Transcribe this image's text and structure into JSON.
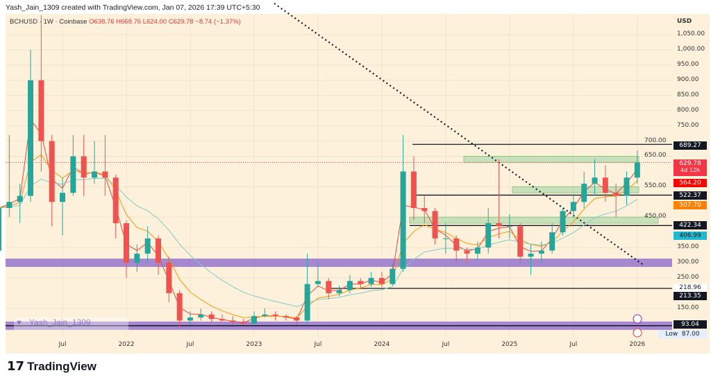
{
  "header": {
    "credit": "Yash_Jain_1309 created with TradingView.com, Jan 07, 2026 17:39 UTC+5:30",
    "symbol": "BCHUSD",
    "interval": "1W",
    "exchange": "Coinbase",
    "open": "O638.76",
    "high": "H668.76",
    "low": "L624.00",
    "close": "C629.78",
    "change": "−8.74 (−1.37%)"
  },
  "currency": "USD",
  "watermark": "Yash_Jain_1309",
  "brand": "TradingView",
  "colors": {
    "up": "#26a69a",
    "down": "#ef5350",
    "band": "#9575cd",
    "zone": "#a5d6a7",
    "ema1": "#f44336",
    "ema2": "#ff9800",
    "ema3": "#80cbc4"
  },
  "badges": {
    "r1": "689.27",
    "last": "629.78",
    "countdown": "4d 12h",
    "ema1": "564.20",
    "r2": "522.37",
    "ema2": "507.70",
    "r3": "422.34",
    "ema3": "406.99",
    "s1": "218.96",
    "s2": "213.35",
    "s3": "93.04",
    "low_label": "Low",
    "low": "87.00"
  },
  "chart_data": {
    "type": "candlestick",
    "y_ticks": [
      "1,050.00",
      "1,000.00",
      "950.00",
      "900.00",
      "850.00",
      "800.00",
      "750.00",
      "700.00",
      "650.00",
      "550.00",
      "450.00",
      "350.00",
      "300.00",
      "250.00",
      "150.00"
    ],
    "y_tick_values": [
      1050,
      1000,
      950,
      900,
      850,
      800,
      750,
      700,
      650,
      550,
      450,
      350,
      300,
      250,
      150
    ],
    "x_ticks": [
      "Jul",
      "2022",
      "Jul",
      "2023",
      "Jul",
      "2024",
      "Jul",
      "2025",
      "Jul",
      "2026"
    ],
    "x_tick_months": [
      6,
      12,
      18,
      24,
      30,
      36,
      42,
      48,
      54,
      60
    ],
    "ohlc_monthly_approx": [
      [
        340,
        520,
        330,
        480
      ],
      [
        480,
        720,
        450,
        500
      ],
      [
        500,
        560,
        430,
        520
      ],
      [
        520,
        1000,
        500,
        900
      ],
      [
        900,
        1600,
        600,
        700
      ],
      [
        700,
        720,
        420,
        500
      ],
      [
        500,
        580,
        390,
        530
      ],
      [
        530,
        720,
        520,
        650
      ],
      [
        650,
        720,
        520,
        580
      ],
      [
        580,
        700,
        560,
        600
      ],
      [
        600,
        720,
        520,
        580
      ],
      [
        580,
        590,
        380,
        430
      ],
      [
        430,
        440,
        250,
        300
      ],
      [
        300,
        360,
        270,
        330
      ],
      [
        330,
        420,
        300,
        380
      ],
      [
        380,
        390,
        260,
        300
      ],
      [
        300,
        320,
        170,
        200
      ],
      [
        200,
        210,
        90,
        110
      ],
      [
        110,
        140,
        95,
        120
      ],
      [
        120,
        150,
        110,
        130
      ],
      [
        130,
        140,
        105,
        115
      ],
      [
        115,
        130,
        105,
        110
      ],
      [
        110,
        125,
        95,
        105
      ],
      [
        105,
        115,
        95,
        100
      ],
      [
        100,
        140,
        98,
        125
      ],
      [
        125,
        150,
        120,
        130
      ],
      [
        130,
        140,
        110,
        125
      ],
      [
        125,
        130,
        110,
        120
      ],
      [
        120,
        125,
        95,
        110
      ],
      [
        110,
        330,
        100,
        230
      ],
      [
        230,
        300,
        220,
        240
      ],
      [
        240,
        250,
        180,
        200
      ],
      [
        200,
        225,
        190,
        210
      ],
      [
        210,
        260,
        200,
        240
      ],
      [
        240,
        250,
        215,
        230
      ],
      [
        230,
        270,
        220,
        250
      ],
      [
        250,
        270,
        220,
        230
      ],
      [
        230,
        300,
        225,
        280
      ],
      [
        280,
        720,
        270,
        600
      ],
      [
        600,
        650,
        440,
        480
      ],
      [
        480,
        520,
        430,
        470
      ],
      [
        470,
        480,
        360,
        380
      ],
      [
        380,
        430,
        330,
        380
      ],
      [
        380,
        390,
        300,
        340
      ],
      [
        340,
        350,
        300,
        330
      ],
      [
        330,
        370,
        310,
        350
      ],
      [
        350,
        480,
        330,
        430
      ],
      [
        430,
        640,
        380,
        420
      ],
      [
        420,
        460,
        380,
        420
      ],
      [
        420,
        430,
        300,
        320
      ],
      [
        320,
        360,
        260,
        330
      ],
      [
        330,
        370,
        300,
        340
      ],
      [
        340,
        430,
        330,
        400
      ],
      [
        400,
        480,
        390,
        470
      ],
      [
        470,
        520,
        450,
        500
      ],
      [
        500,
        600,
        480,
        560
      ],
      [
        560,
        640,
        520,
        580
      ],
      [
        580,
        620,
        500,
        530
      ],
      [
        530,
        560,
        450,
        520
      ],
      [
        520,
        600,
        490,
        580
      ],
      [
        580,
        668.76,
        560,
        629.78
      ]
    ],
    "resistance": [
      689.27,
      522.37,
      422.34
    ],
    "support": [
      218.96,
      213.35,
      93.04
    ],
    "bands": [
      300,
      93.04
    ],
    "zones": [
      [
        630,
        650
      ],
      [
        530,
        550
      ],
      [
        430,
        450
      ]
    ],
    "ema_last": [
      564.2,
      507.7,
      406.99
    ]
  }
}
